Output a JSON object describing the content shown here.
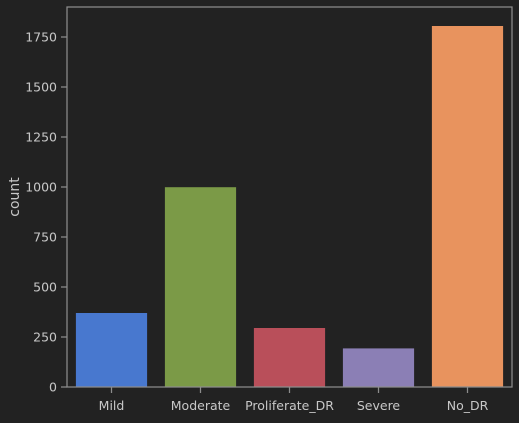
{
  "chart_data": {
    "type": "bar",
    "title": "",
    "xlabel": "",
    "ylabel": "count",
    "categories": [
      "Mild",
      "Moderate",
      "Proliferate_DR",
      "Severe",
      "No_DR"
    ],
    "values": [
      370,
      999,
      295,
      193,
      1805
    ],
    "colors": [
      "#4878cf",
      "#7b9a47",
      "#b94f5a",
      "#8b7fb5",
      "#e8935e"
    ],
    "ylim": [
      0,
      1900
    ],
    "yticks": [
      0,
      250,
      500,
      750,
      1000,
      1250,
      1500,
      1750
    ],
    "grid": false,
    "legend": "none"
  },
  "theme": {
    "background": "#222222",
    "axes_edge": "#8c8c8c",
    "text": "#c8c8c8"
  }
}
